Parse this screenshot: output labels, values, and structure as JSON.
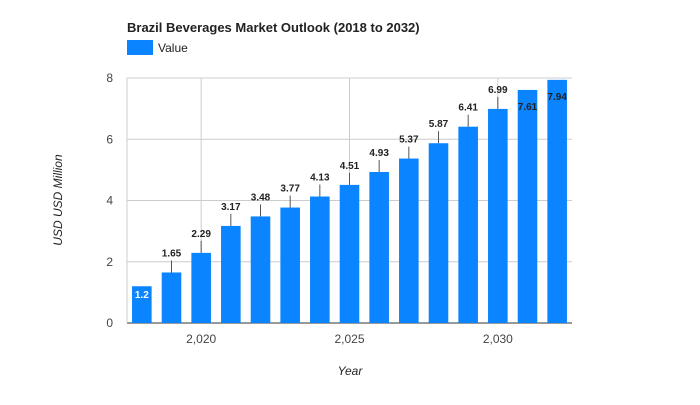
{
  "chart_data": {
    "type": "bar",
    "title": "Brazil Beverages Market Outlook (2018 to 2032)",
    "xlabel": "Year",
    "ylabel": "USD USD Million",
    "legend": {
      "entries": [
        "Value"
      ],
      "position": "top-left"
    },
    "series": [
      {
        "name": "Value",
        "color": "#0a84ff",
        "x": [
          2018,
          2019,
          2020,
          2021,
          2022,
          2023,
          2024,
          2025,
          2026,
          2027,
          2028,
          2029,
          2030,
          2031,
          2032
        ],
        "values": [
          1.2,
          1.65,
          2.29,
          3.17,
          3.48,
          3.77,
          4.13,
          4.51,
          4.93,
          5.37,
          5.87,
          6.41,
          6.99,
          7.61,
          7.94
        ]
      }
    ],
    "data_labels": [
      "1.2",
      "1.65",
      "2.29",
      "3.17",
      "3.48",
      "3.77",
      "4.13",
      "4.51",
      "4.93",
      "5.37",
      "5.87",
      "6.41",
      "6.99",
      "7.61",
      "7.94"
    ],
    "x_ticks": [
      2020,
      2025,
      2030
    ],
    "x_tick_labels": [
      "2,020",
      "2,025",
      "2,030"
    ],
    "y_ticks": [
      0,
      2,
      4,
      6,
      8
    ],
    "y_tick_labels": [
      "0",
      "2",
      "4",
      "6",
      "8"
    ],
    "ylim": [
      0,
      8
    ],
    "xlim": [
      2017.5,
      2032.5
    ],
    "grid": true
  }
}
